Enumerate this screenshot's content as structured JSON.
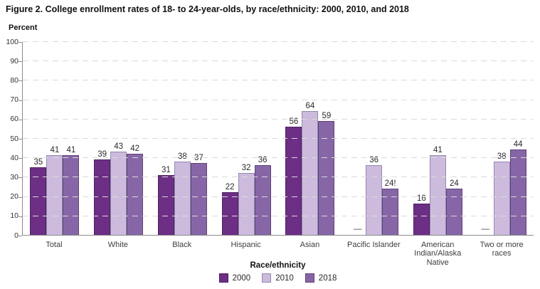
{
  "figure": {
    "title": "Figure 2. College enrollment rates of 18- to 24-year-olds, by race/ethnicity: 2000, 2010, and 2018"
  },
  "chart_data": {
    "type": "bar",
    "title": "Figure 2. College enrollment rates of 18- to 24-year-olds, by race/ethnicity: 2000, 2010, and 2018",
    "ylabel": "Percent",
    "xlabel": "Race/ethnicity",
    "ylim": [
      0,
      100
    ],
    "ytick_step": 10,
    "grid": true,
    "grid_style": "dashed",
    "legend_position": "bottom",
    "missing_marker": "—",
    "categories": [
      "Total",
      "White",
      "Black",
      "Hispanic",
      "Asian",
      "Pacific Islander",
      "American Indian/Alaska Native",
      "Two or more races"
    ],
    "series": [
      {
        "name": "2000",
        "color": "#6D2E85",
        "border": "#4E2060",
        "values": [
          35,
          39,
          31,
          22,
          56,
          null,
          16,
          null
        ],
        "labels": [
          "35",
          "39",
          "31",
          "22",
          "56",
          "—",
          "16",
          "—"
        ]
      },
      {
        "name": "2010",
        "color": "#CCBBDD",
        "border": "#9588AE",
        "values": [
          41,
          43,
          38,
          32,
          64,
          36,
          41,
          38
        ],
        "labels": [
          "41",
          "43",
          "38",
          "32",
          "64",
          "36",
          "41",
          "38"
        ]
      },
      {
        "name": "2018",
        "color": "#8766A7",
        "border": "#5E4377",
        "values": [
          41,
          42,
          37,
          36,
          59,
          24,
          24,
          44
        ],
        "labels": [
          "41",
          "42",
          "37",
          "36",
          "59",
          "24!",
          "24",
          "44"
        ]
      }
    ]
  }
}
